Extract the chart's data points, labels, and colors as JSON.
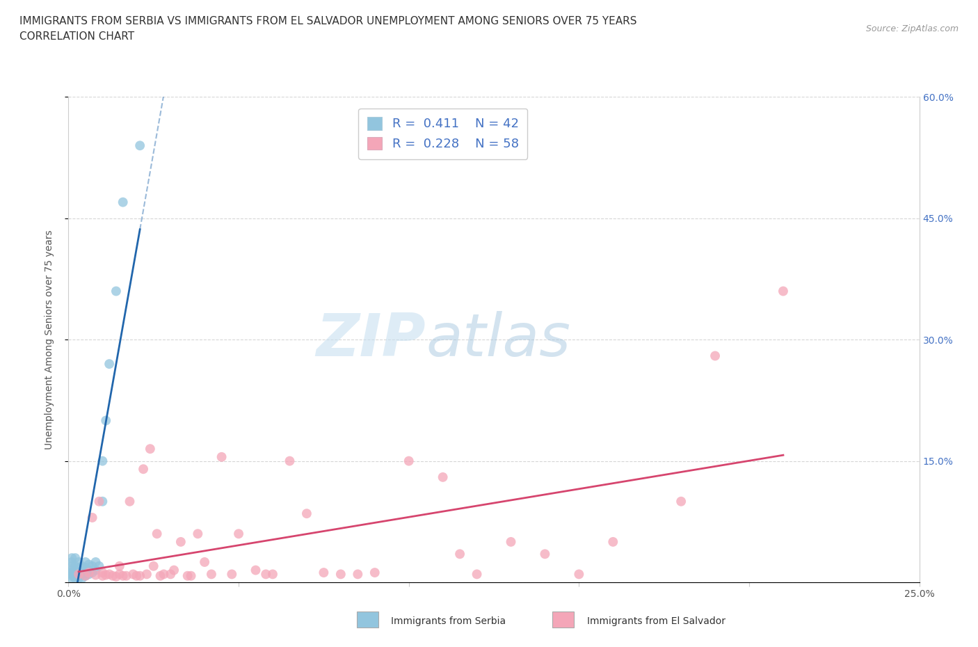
{
  "title_line1": "IMMIGRANTS FROM SERBIA VS IMMIGRANTS FROM EL SALVADOR UNEMPLOYMENT AMONG SENIORS OVER 75 YEARS",
  "title_line2": "CORRELATION CHART",
  "source_text": "Source: ZipAtlas.com",
  "ylabel": "Unemployment Among Seniors over 75 years",
  "watermark_part1": "ZIP",
  "watermark_part2": "atlas",
  "legend_serbia_r": "0.411",
  "legend_serbia_n": "42",
  "legend_salvador_r": "0.228",
  "legend_salvador_n": "58",
  "xlim": [
    0.0,
    0.25
  ],
  "ylim": [
    0.0,
    0.6
  ],
  "color_serbia": "#92c5de",
  "color_salvador": "#f4a6b8",
  "line_color_serbia": "#2166ac",
  "line_color_salvador": "#d6456e",
  "grid_color": "#cccccc",
  "background_color": "#ffffff",
  "title_fontsize": 11,
  "label_fontsize": 10,
  "tick_fontsize": 10,
  "serbia_x": [
    0.001,
    0.001,
    0.001,
    0.001,
    0.001,
    0.001,
    0.001,
    0.001,
    0.002,
    0.002,
    0.002,
    0.002,
    0.002,
    0.002,
    0.003,
    0.003,
    0.003,
    0.003,
    0.003,
    0.004,
    0.004,
    0.004,
    0.004,
    0.005,
    0.005,
    0.005,
    0.005,
    0.006,
    0.006,
    0.006,
    0.007,
    0.007,
    0.008,
    0.008,
    0.009,
    0.01,
    0.01,
    0.011,
    0.012,
    0.014,
    0.016,
    0.021
  ],
  "serbia_y": [
    0.005,
    0.008,
    0.01,
    0.012,
    0.015,
    0.02,
    0.025,
    0.03,
    0.005,
    0.008,
    0.01,
    0.015,
    0.02,
    0.03,
    0.005,
    0.008,
    0.012,
    0.018,
    0.025,
    0.005,
    0.01,
    0.015,
    0.02,
    0.008,
    0.012,
    0.018,
    0.025,
    0.01,
    0.015,
    0.022,
    0.012,
    0.02,
    0.015,
    0.025,
    0.02,
    0.1,
    0.15,
    0.2,
    0.27,
    0.36,
    0.47,
    0.54
  ],
  "salvador_x": [
    0.003,
    0.005,
    0.006,
    0.007,
    0.008,
    0.009,
    0.01,
    0.01,
    0.011,
    0.012,
    0.013,
    0.014,
    0.015,
    0.015,
    0.016,
    0.017,
    0.018,
    0.019,
    0.02,
    0.021,
    0.022,
    0.023,
    0.024,
    0.025,
    0.026,
    0.027,
    0.028,
    0.03,
    0.031,
    0.033,
    0.035,
    0.036,
    0.038,
    0.04,
    0.042,
    0.045,
    0.048,
    0.05,
    0.055,
    0.058,
    0.06,
    0.065,
    0.07,
    0.075,
    0.08,
    0.085,
    0.09,
    0.1,
    0.11,
    0.115,
    0.12,
    0.13,
    0.14,
    0.15,
    0.16,
    0.18,
    0.19,
    0.21
  ],
  "salvador_y": [
    0.01,
    0.008,
    0.012,
    0.08,
    0.009,
    0.1,
    0.008,
    0.012,
    0.009,
    0.01,
    0.008,
    0.007,
    0.01,
    0.02,
    0.008,
    0.008,
    0.1,
    0.01,
    0.008,
    0.008,
    0.14,
    0.01,
    0.165,
    0.02,
    0.06,
    0.008,
    0.01,
    0.01,
    0.015,
    0.05,
    0.008,
    0.008,
    0.06,
    0.025,
    0.01,
    0.155,
    0.01,
    0.06,
    0.015,
    0.01,
    0.01,
    0.15,
    0.085,
    0.012,
    0.01,
    0.01,
    0.012,
    0.15,
    0.13,
    0.035,
    0.01,
    0.05,
    0.035,
    0.01,
    0.05,
    0.1,
    0.28,
    0.36
  ]
}
